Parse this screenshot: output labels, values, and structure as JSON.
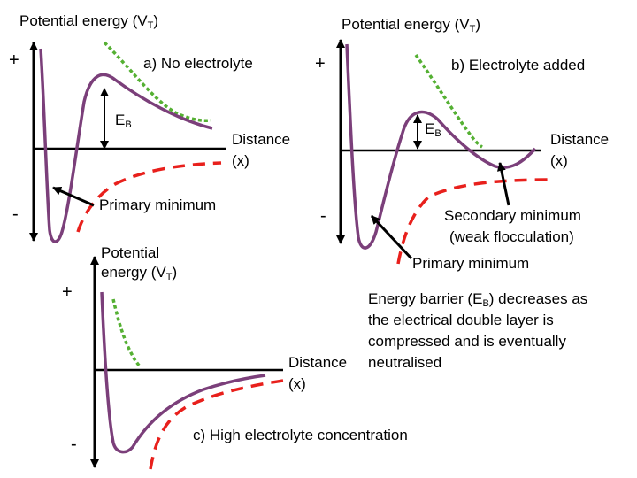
{
  "colors": {
    "potential": "#7b3f7a",
    "attraction": "#e8201c",
    "repulsion": "#55b033",
    "axis": "#000000"
  },
  "sign_plus": "+",
  "sign_minus": "-",
  "axis_v_label": "Potential energy (V",
  "axis_v_sub": "T",
  "axis_v_close": ")",
  "distance_label": "Distance",
  "distance_unit": "(x)",
  "eb_label": "E",
  "eb_sub": "B",
  "panel_a": {
    "title": "a) No electrolyte",
    "primary_min": "Primary minimum"
  },
  "panel_b": {
    "title": "b) Electrolyte added",
    "secondary_min_line1": "Secondary minimum",
    "secondary_min_line2": "(weak flocculation)",
    "primary_min": "Primary minimum"
  },
  "panel_c": {
    "potential_line1": "Potential",
    "potential_line2": "energy (V",
    "title": "c) High electrolyte concentration"
  },
  "note": {
    "line1_a": "Energy barrier (E",
    "line1_sub": "B",
    "line1_b": ") decreases as",
    "line2": "the electrical double layer is",
    "line3": "compressed and is eventually",
    "line4": "neutralised"
  }
}
